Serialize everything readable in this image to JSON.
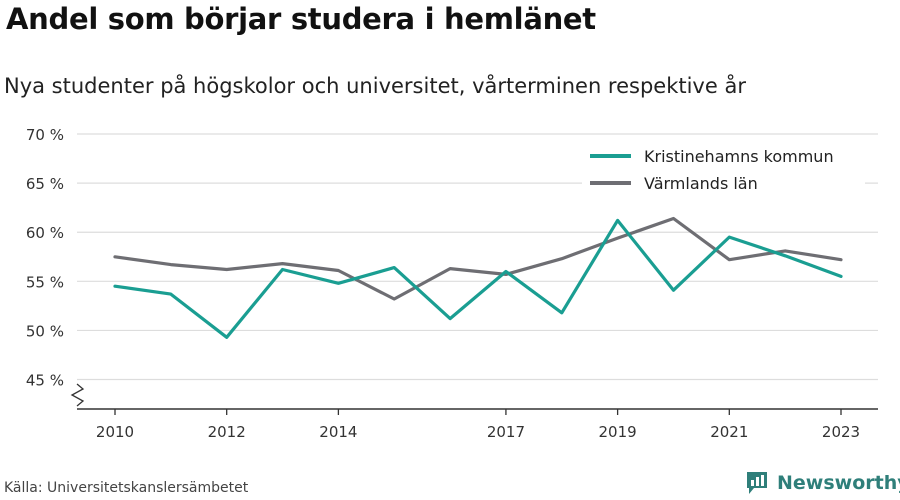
{
  "header": {
    "title": "Andel som börjar studera i hemlänet",
    "subtitle": "Nya studenter på högskolor och universitet, vårterminen respektive år"
  },
  "footer": {
    "source": "Källa: Universitetskanslersämbetet",
    "brand": "Newsworthy",
    "brand_icon": "newsworthy-logo-icon"
  },
  "colors": {
    "kristinehamn": "#1a9e92",
    "varmland": "#6e6e73",
    "grid": "#dddddd",
    "axis": "#333333",
    "brand": "#2f7f7a"
  },
  "chart_data": {
    "type": "line",
    "title": "Andel som börjar studera i hemlänet",
    "subtitle": "Nya studenter på högskolor och universitet, vårterminen respektive år",
    "x": [
      2010,
      2011,
      2012,
      2013,
      2014,
      2015,
      2016,
      2017,
      2018,
      2019,
      2020,
      2021,
      2022,
      2023
    ],
    "x_ticks": [
      2010,
      2012,
      2014,
      2017,
      2019,
      2021,
      2023
    ],
    "y_ticks": [
      45,
      50,
      55,
      60,
      65,
      70
    ],
    "y_tick_labels": [
      "45 %",
      "50 %",
      "55 %",
      "60 %",
      "65 %",
      "70 %"
    ],
    "ylim": [
      45,
      70
    ],
    "y_axis_break": true,
    "grid": true,
    "legend_position": "top-right",
    "series": [
      {
        "name": "Kristinehamns kommun",
        "color": "#1a9e92",
        "values": [
          54.5,
          53.7,
          49.3,
          56.2,
          54.8,
          56.4,
          51.2,
          56.0,
          51.8,
          61.2,
          54.1,
          59.5,
          57.6,
          55.5
        ]
      },
      {
        "name": "Värmlands län",
        "color": "#6e6e73",
        "values": [
          57.5,
          56.7,
          56.2,
          56.8,
          56.1,
          53.2,
          56.3,
          55.7,
          57.3,
          59.4,
          61.4,
          57.2,
          58.1,
          57.2
        ]
      }
    ]
  }
}
